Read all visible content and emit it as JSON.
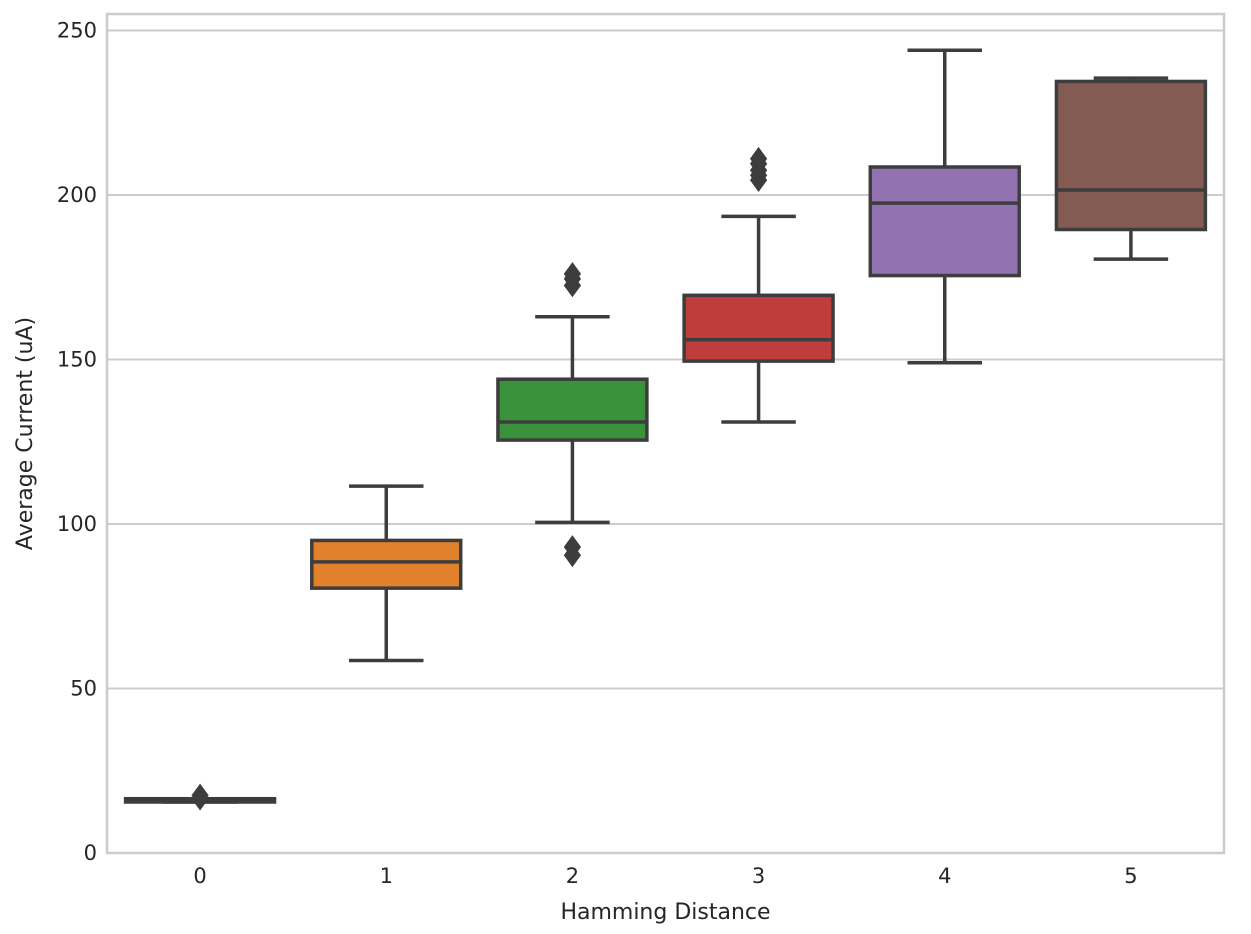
{
  "chart_data": {
    "type": "box",
    "title": "",
    "xlabel": "Hamming Distance",
    "ylabel": "Average Current (uA)",
    "ylim": [
      0,
      255
    ],
    "yticks": [
      0,
      50,
      100,
      150,
      200,
      250
    ],
    "grid": "horizontal",
    "categories": [
      "0",
      "1",
      "2",
      "3",
      "4",
      "5"
    ],
    "boxes": [
      {
        "category": "0",
        "whisker_low": 15.5,
        "q1": 15.5,
        "median": 16.0,
        "q3": 16.5,
        "whisker_high": 16.5,
        "outliers": [
          16.5,
          17.5
        ],
        "color": "#3274a1"
      },
      {
        "category": "1",
        "whisker_low": 58.5,
        "q1": 80.5,
        "median": 88.5,
        "q3": 95.0,
        "whisker_high": 111.5,
        "outliers": [],
        "color": "#e1812c"
      },
      {
        "category": "2",
        "whisker_low": 100.5,
        "q1": 125.5,
        "median": 131.0,
        "q3": 144.0,
        "whisker_high": 163.0,
        "outliers": [
          90.5,
          93.0,
          172.5,
          174.5,
          176.0
        ],
        "color": "#3a923a"
      },
      {
        "category": "3",
        "whisker_low": 131.0,
        "q1": 149.5,
        "median": 156.0,
        "q3": 169.5,
        "whisker_high": 193.5,
        "outliers": [
          204.5,
          206.0,
          207.5,
          209.5,
          211.0
        ],
        "color": "#c03d3e"
      },
      {
        "category": "4",
        "whisker_low": 149.0,
        "q1": 175.5,
        "median": 197.5,
        "q3": 208.5,
        "whisker_high": 244.0,
        "outliers": [],
        "color": "#9372b2"
      },
      {
        "category": "5",
        "whisker_low": 180.5,
        "q1": 189.5,
        "median": 201.5,
        "q3": 234.5,
        "whisker_high": 235.5,
        "outliers": [],
        "color": "#845b53"
      }
    ]
  }
}
